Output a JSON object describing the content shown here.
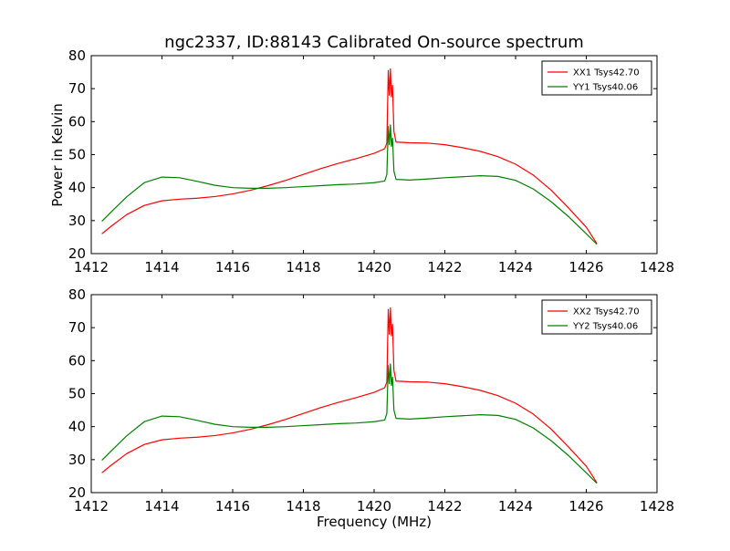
{
  "title": "ngc2337, ID:88143 Calibrated On-source spectrum",
  "ylabel": "Power in Kelvin",
  "xlabel": "Frequency (MHz)",
  "chart_data": [
    {
      "type": "line",
      "xlim": [
        1412,
        1428
      ],
      "ylim": [
        20,
        80
      ],
      "xticks": [
        1412,
        1414,
        1416,
        1418,
        1420,
        1422,
        1424,
        1426,
        1428
      ],
      "yticks": [
        20,
        30,
        40,
        50,
        60,
        70,
        80
      ],
      "legend_position": "top-right",
      "series": [
        {
          "name": "XX1 Tsys42.70",
          "color": "#ff0000",
          "points": [
            [
              1412.3,
              26.0
            ],
            [
              1412.6,
              28.6
            ],
            [
              1413.0,
              31.8
            ],
            [
              1413.5,
              34.6
            ],
            [
              1414.0,
              36.0
            ],
            [
              1414.5,
              36.5
            ],
            [
              1415.0,
              36.8
            ],
            [
              1415.5,
              37.3
            ],
            [
              1416.0,
              38.1
            ],
            [
              1416.5,
              39.2
            ],
            [
              1417.0,
              40.6
            ],
            [
              1417.5,
              42.2
            ],
            [
              1418.0,
              44.0
            ],
            [
              1418.5,
              45.8
            ],
            [
              1419.0,
              47.4
            ],
            [
              1419.5,
              48.8
            ],
            [
              1420.0,
              50.4
            ],
            [
              1420.3,
              51.8
            ],
            [
              1420.36,
              53.5
            ],
            [
              1420.4,
              75.5
            ],
            [
              1420.43,
              68.0
            ],
            [
              1420.46,
              76.0
            ],
            [
              1420.49,
              67.5
            ],
            [
              1420.52,
              71.0
            ],
            [
              1420.56,
              57.0
            ],
            [
              1420.62,
              53.8
            ],
            [
              1421.0,
              53.6
            ],
            [
              1421.5,
              53.5
            ],
            [
              1422.0,
              53.0
            ],
            [
              1422.5,
              52.1
            ],
            [
              1423.0,
              51.0
            ],
            [
              1423.5,
              49.4
            ],
            [
              1424.0,
              47.1
            ],
            [
              1424.5,
              43.8
            ],
            [
              1425.0,
              39.3
            ],
            [
              1425.5,
              33.8
            ],
            [
              1426.0,
              28.0
            ],
            [
              1426.3,
              23.0
            ]
          ]
        },
        {
          "name": "YY1 Tsys40.06",
          "color": "#008000",
          "points": [
            [
              1412.3,
              29.8
            ],
            [
              1412.6,
              33.0
            ],
            [
              1413.0,
              37.2
            ],
            [
              1413.5,
              41.5
            ],
            [
              1414.0,
              43.2
            ],
            [
              1414.5,
              43.0
            ],
            [
              1415.0,
              41.9
            ],
            [
              1415.5,
              40.7
            ],
            [
              1416.0,
              40.0
            ],
            [
              1416.5,
              39.8
            ],
            [
              1417.0,
              39.8
            ],
            [
              1417.5,
              40.0
            ],
            [
              1418.0,
              40.3
            ],
            [
              1418.5,
              40.6
            ],
            [
              1419.0,
              40.9
            ],
            [
              1419.5,
              41.1
            ],
            [
              1420.0,
              41.5
            ],
            [
              1420.3,
              42.0
            ],
            [
              1420.36,
              44.0
            ],
            [
              1420.4,
              58.5
            ],
            [
              1420.43,
              53.0
            ],
            [
              1420.46,
              59.0
            ],
            [
              1420.49,
              52.5
            ],
            [
              1420.52,
              55.0
            ],
            [
              1420.56,
              45.0
            ],
            [
              1420.62,
              42.5
            ],
            [
              1421.0,
              42.3
            ],
            [
              1421.5,
              42.6
            ],
            [
              1422.0,
              43.0
            ],
            [
              1422.5,
              43.3
            ],
            [
              1423.0,
              43.6
            ],
            [
              1423.5,
              43.4
            ],
            [
              1424.0,
              42.2
            ],
            [
              1424.5,
              39.6
            ],
            [
              1425.0,
              35.8
            ],
            [
              1425.5,
              31.2
            ],
            [
              1426.0,
              26.0
            ],
            [
              1426.3,
              22.8
            ]
          ]
        }
      ]
    },
    {
      "type": "line",
      "xlim": [
        1412,
        1428
      ],
      "ylim": [
        20,
        80
      ],
      "xticks": [
        1412,
        1414,
        1416,
        1418,
        1420,
        1422,
        1424,
        1426,
        1428
      ],
      "yticks": [
        20,
        30,
        40,
        50,
        60,
        70,
        80
      ],
      "legend_position": "top-right",
      "series": [
        {
          "name": "XX2 Tsys42.70",
          "color": "#ff0000",
          "points": [
            [
              1412.3,
              26.0
            ],
            [
              1412.6,
              28.6
            ],
            [
              1413.0,
              31.8
            ],
            [
              1413.5,
              34.6
            ],
            [
              1414.0,
              36.0
            ],
            [
              1414.5,
              36.5
            ],
            [
              1415.0,
              36.8
            ],
            [
              1415.5,
              37.3
            ],
            [
              1416.0,
              38.1
            ],
            [
              1416.5,
              39.2
            ],
            [
              1417.0,
              40.6
            ],
            [
              1417.5,
              42.2
            ],
            [
              1418.0,
              44.0
            ],
            [
              1418.5,
              45.8
            ],
            [
              1419.0,
              47.4
            ],
            [
              1419.5,
              48.8
            ],
            [
              1420.0,
              50.4
            ],
            [
              1420.3,
              51.8
            ],
            [
              1420.36,
              53.5
            ],
            [
              1420.4,
              75.5
            ],
            [
              1420.43,
              68.0
            ],
            [
              1420.46,
              76.0
            ],
            [
              1420.49,
              67.5
            ],
            [
              1420.52,
              71.0
            ],
            [
              1420.56,
              57.0
            ],
            [
              1420.62,
              53.8
            ],
            [
              1421.0,
              53.6
            ],
            [
              1421.5,
              53.5
            ],
            [
              1422.0,
              53.0
            ],
            [
              1422.5,
              52.1
            ],
            [
              1423.0,
              51.0
            ],
            [
              1423.5,
              49.4
            ],
            [
              1424.0,
              47.1
            ],
            [
              1424.5,
              43.8
            ],
            [
              1425.0,
              39.3
            ],
            [
              1425.5,
              33.8
            ],
            [
              1426.0,
              28.0
            ],
            [
              1426.3,
              23.0
            ]
          ]
        },
        {
          "name": "YY2 Tsys40.06",
          "color": "#008000",
          "points": [
            [
              1412.3,
              29.8
            ],
            [
              1412.6,
              33.0
            ],
            [
              1413.0,
              37.2
            ],
            [
              1413.5,
              41.5
            ],
            [
              1414.0,
              43.2
            ],
            [
              1414.5,
              43.0
            ],
            [
              1415.0,
              41.9
            ],
            [
              1415.5,
              40.7
            ],
            [
              1416.0,
              40.0
            ],
            [
              1416.5,
              39.8
            ],
            [
              1417.0,
              39.8
            ],
            [
              1417.5,
              40.0
            ],
            [
              1418.0,
              40.3
            ],
            [
              1418.5,
              40.6
            ],
            [
              1419.0,
              40.9
            ],
            [
              1419.5,
              41.1
            ],
            [
              1420.0,
              41.5
            ],
            [
              1420.3,
              42.0
            ],
            [
              1420.36,
              44.0
            ],
            [
              1420.4,
              58.5
            ],
            [
              1420.43,
              53.0
            ],
            [
              1420.46,
              59.0
            ],
            [
              1420.49,
              52.5
            ],
            [
              1420.52,
              55.0
            ],
            [
              1420.56,
              45.0
            ],
            [
              1420.62,
              42.5
            ],
            [
              1421.0,
              42.3
            ],
            [
              1421.5,
              42.6
            ],
            [
              1422.0,
              43.0
            ],
            [
              1422.5,
              43.3
            ],
            [
              1423.0,
              43.6
            ],
            [
              1423.5,
              43.4
            ],
            [
              1424.0,
              42.2
            ],
            [
              1424.5,
              39.6
            ],
            [
              1425.0,
              35.8
            ],
            [
              1425.5,
              31.2
            ],
            [
              1426.0,
              26.0
            ],
            [
              1426.3,
              22.8
            ]
          ]
        }
      ]
    }
  ]
}
